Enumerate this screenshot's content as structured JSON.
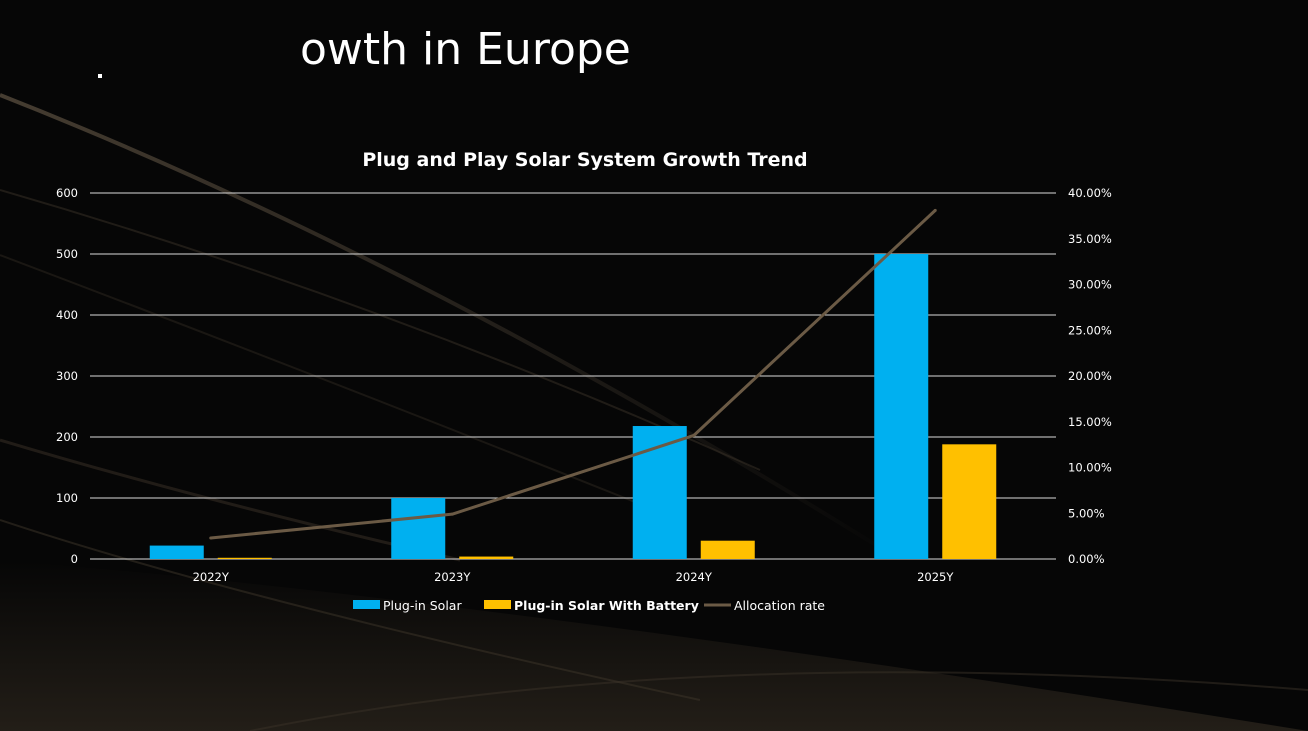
{
  "slide": {
    "title": "owth in Europe"
  },
  "colors": {
    "plug_in_solar": "#00b0f0",
    "with_battery": "#ffc000",
    "allocation_rate": "#6b5a45",
    "grid": "#d9d9d9",
    "text": "#ffffff"
  },
  "chart_data": {
    "type": "bar",
    "title": "Plug and Play Solar System Growth Trend",
    "categories": [
      "2022Y",
      "2023Y",
      "2024Y",
      "2025Y"
    ],
    "ylim": [
      0,
      600
    ],
    "y_ticks": [
      "0",
      "100",
      "200",
      "300",
      "400",
      "500",
      "600"
    ],
    "y2lim": [
      0,
      40
    ],
    "y2_ticks": [
      "0.00%",
      "5.00%",
      "10.00%",
      "15.00%",
      "20.00%",
      "25.00%",
      "30.00%",
      "35.00%",
      "40.00%"
    ],
    "grid": true,
    "legend_position": "bottom",
    "series": [
      {
        "name": "Plug-in Solar",
        "type": "bar",
        "axis": "left",
        "values": [
          22,
          100,
          218,
          500
        ]
      },
      {
        "name": "Plug-in Solar With Battery",
        "type": "bar",
        "axis": "left",
        "values": [
          2,
          4,
          30,
          188
        ]
      },
      {
        "name": "Allocation rate",
        "type": "line",
        "axis": "right",
        "values": [
          2.3,
          4.9,
          13.5,
          38.1
        ]
      }
    ]
  }
}
